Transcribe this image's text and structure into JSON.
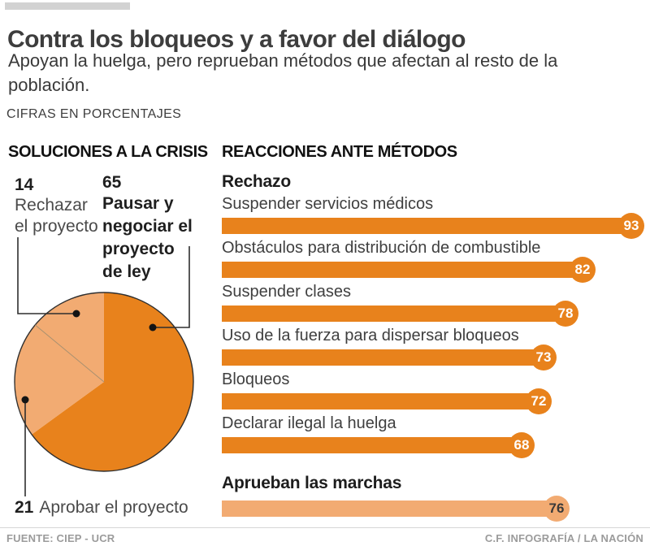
{
  "header": {
    "title": "Contra los bloqueos y a favor del diálogo",
    "subtitle": "Apoyan la huelga, pero reprueban métodos que afectan al resto de la población.",
    "units_note": "CIFRAS EN PORCENTAJES"
  },
  "left_section": {
    "title": "SOLUCIONES A LA CRISIS",
    "callouts": {
      "reject": {
        "value": "14",
        "lines": [
          "Rechazar",
          "el proyecto"
        ]
      },
      "pause": {
        "value": "65",
        "lines": [
          "Pausar y",
          "negociar el",
          "proyecto",
          "de ley"
        ]
      },
      "approve": {
        "value": "21",
        "label": "Aprobar el proyecto"
      }
    }
  },
  "right_section": {
    "title": "REACCIONES ANTE MÉTODOS",
    "group1_header": "Rechazo",
    "group2_header": "Aprueban las marchas"
  },
  "footer": {
    "source": "FUENTE: CIEP - UCR",
    "credit": "C.F. INFOGRAFÍA / LA NACIÓN"
  },
  "colors": {
    "orange_dark": "#E8821C",
    "orange_light": "#F2AB72",
    "title_text": "#3D3D3D",
    "accent_bar_gray": "#D2D2D2"
  },
  "chart_data": [
    {
      "type": "pie",
      "title": "SOLUCIONES A LA CRISIS",
      "unit": "percent",
      "start_angle_deg": 0,
      "direction": "clockwise",
      "slices": [
        {
          "label": "Pausar y negociar el proyecto de ley",
          "value": 65,
          "color": "#E8821C"
        },
        {
          "label": "Aprobar el proyecto",
          "value": 21,
          "color": "#F2AB72"
        },
        {
          "label": "Rechazar el proyecto",
          "value": 14,
          "color": "#F2AB72"
        }
      ]
    },
    {
      "type": "bar",
      "orientation": "horizontal",
      "title": "REACCIONES ANTE MÉTODOS",
      "unit": "percent",
      "value_range": [
        0,
        100
      ],
      "series": [
        {
          "name": "Rechazo",
          "color": "#E8821C",
          "value_text_color": "#FFFFFF",
          "bars": [
            {
              "label": "Suspender servicios médicos",
              "value": 93
            },
            {
              "label": "Obstáculos para distribución de combustible",
              "value": 82
            },
            {
              "label": "Suspender clases",
              "value": 78
            },
            {
              "label": "Uso de la fuerza para dispersar bloqueos",
              "value": 73
            },
            {
              "label": "Bloqueos",
              "value": 72
            },
            {
              "label": "Declarar ilegal la huelga",
              "value": 68
            }
          ]
        },
        {
          "name": "Aprueban las marchas",
          "color": "#F2AB72",
          "value_text_color": "#3A3A3A",
          "bars": [
            {
              "label": "Aprueban las marchas",
              "value": 76
            }
          ]
        }
      ]
    }
  ]
}
